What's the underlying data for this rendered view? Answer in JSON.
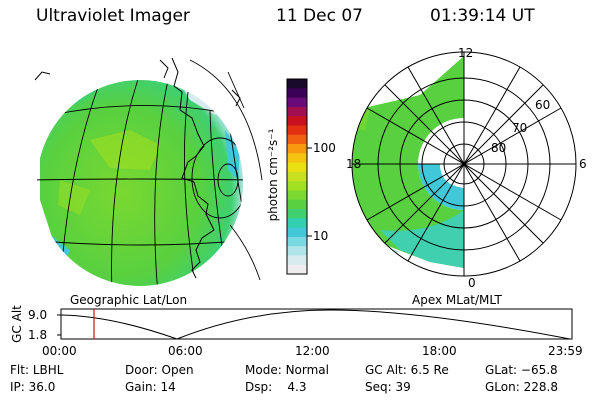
{
  "header": {
    "title": "Ultraviolet Imager",
    "date": "11 Dec 07",
    "time": "01:39:14 UT"
  },
  "colorbar": {
    "unit_label": "photon cm⁻²s⁻¹",
    "tick_labels": [
      "100",
      "10"
    ],
    "colors": [
      "#1a0a2a",
      "#3a0055",
      "#6a0a7a",
      "#a01050",
      "#c81020",
      "#e23010",
      "#f06010",
      "#f89a10",
      "#f4c410",
      "#e8e010",
      "#c8e020",
      "#a0e020",
      "#7ad830",
      "#58d040",
      "#40d070",
      "#30d0b0",
      "#40c8d8",
      "#78d8e0",
      "#b0e4e8",
      "#d8ecee",
      "#eeeeee"
    ]
  },
  "polar": {
    "mlt_labels": {
      "top": "12",
      "right": "6",
      "bottom": "0",
      "left": "18"
    },
    "mlat_labels": [
      "60",
      "70",
      "80"
    ]
  },
  "labels": {
    "geographic": "Geographic Lat/Lon",
    "apex": "Apex MLat/MLT"
  },
  "altitude_plot": {
    "ylabel": "GC Alt",
    "y_ticks": [
      "9.0",
      "1.8"
    ],
    "x_ticks": [
      "00:00",
      "06:00",
      "12:00",
      "18:00",
      "23:59"
    ],
    "current_time_marker": "01:39"
  },
  "info": {
    "flt": {
      "label": "Flt:",
      "value": "LBHL"
    },
    "ip": {
      "label": "IP:",
      "value": "36.0"
    },
    "door": {
      "label": "Door:",
      "value": "Open"
    },
    "gain": {
      "label": "Gain:",
      "value": "14"
    },
    "mode": {
      "label": "Mode:",
      "value": "Normal"
    },
    "dsp": {
      "label": "Dsp:",
      "value": "4.3"
    },
    "gcalt": {
      "label": "GC Alt:",
      "value": "6.5 Re"
    },
    "seq": {
      "label": "Seq:",
      "value": "39"
    },
    "glat": {
      "label": "GLat:",
      "value": "−65.8"
    },
    "glon": {
      "label": "GLon:",
      "value": "228.8"
    }
  }
}
